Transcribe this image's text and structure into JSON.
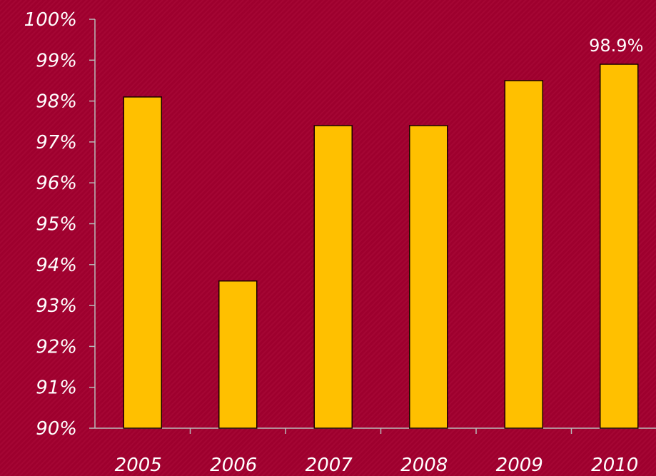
{
  "chart_data": {
    "type": "bar",
    "title": "",
    "xlabel": "",
    "ylabel": "",
    "categories": [
      "2005",
      "2006",
      "2007",
      "2008",
      "2009",
      "2010"
    ],
    "values": [
      98.1,
      93.6,
      97.4,
      97.4,
      98.5,
      98.9
    ],
    "ylim": [
      90,
      100
    ],
    "yticks": [
      90,
      91,
      92,
      93,
      94,
      95,
      96,
      97,
      98,
      99,
      100
    ],
    "ytick_labels": [
      "90%",
      "91%",
      "92%",
      "93%",
      "94%",
      "95%",
      "96%",
      "97%",
      "98%",
      "99%",
      "100%"
    ],
    "data_labels": [
      {
        "category": "2010",
        "text": "98.9%"
      }
    ],
    "grid": false,
    "legend": "none",
    "colors": {
      "background": "#a3002f",
      "bar_fill": "#ffc000",
      "bar_stroke": "#1a0000",
      "axis": "#b9b9b9",
      "text": "#ffffff"
    }
  }
}
